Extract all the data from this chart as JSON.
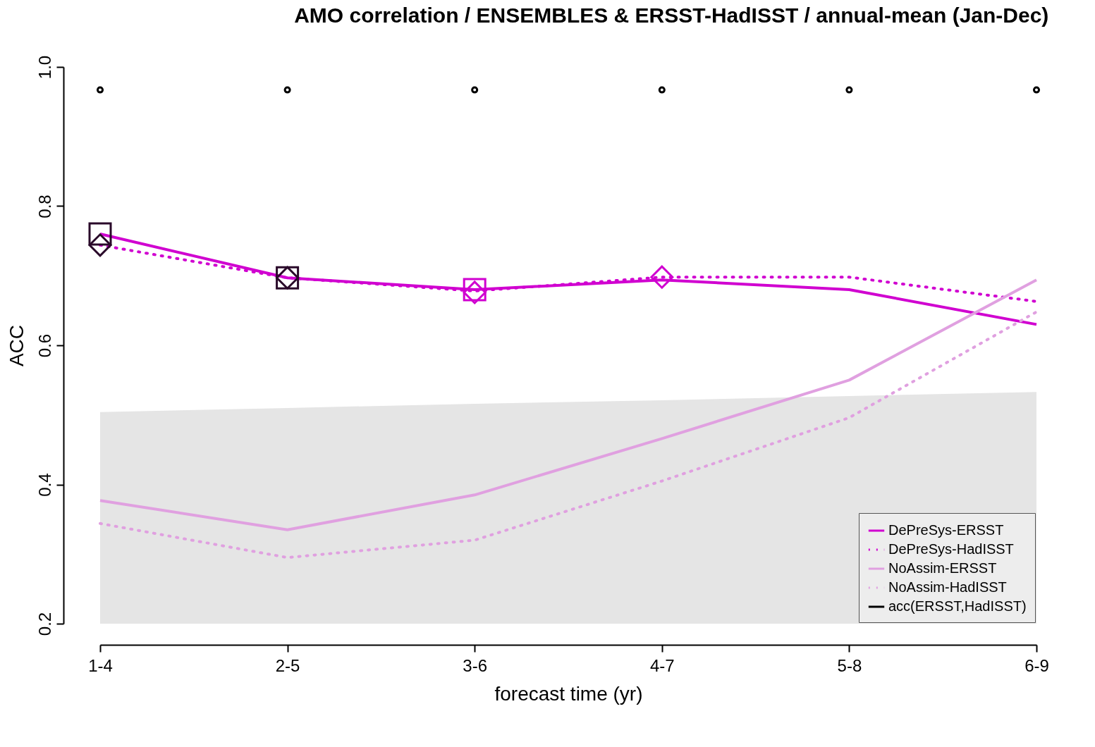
{
  "chart_data": {
    "type": "line",
    "title": "AMO correlation / ENSEMBLES & ERSST-HadISST / annual-mean (Jan-Dec)",
    "xlabel": "forecast time (yr)",
    "ylabel": "ACC",
    "categories": [
      "1-4",
      "2-5",
      "3-6",
      "4-7",
      "5-8",
      "6-9"
    ],
    "ylim": [
      0.2,
      1.0
    ],
    "yticks": [
      0.2,
      0.4,
      0.6,
      0.8,
      {
        "value": 1.0,
        "label": "1.0"
      }
    ],
    "grid": false,
    "legend": "bottom right",
    "series": [
      {
        "type": "area",
        "color": "#e5e5e5",
        "values": [
          0.504,
          0.51,
          0.516,
          0.521,
          0.527,
          0.533
        ]
      },
      {
        "name": "DePreSys-ERSST",
        "color": "#d000d0",
        "line_style": "solid",
        "values": [
          0.76,
          0.697,
          0.68,
          0.694,
          0.68,
          0.63
        ]
      },
      {
        "name": "DePreSys-HadISST",
        "color": "#d000d0",
        "line_style": "dotted",
        "values": [
          0.744,
          0.697,
          0.678,
          0.698,
          0.698,
          0.663
        ]
      },
      {
        "name": "NoAssim-ERSST",
        "color": "#e0a0e0",
        "line_style": "solid",
        "values": [
          0.377,
          0.335,
          0.385,
          0.466,
          0.55,
          0.694
        ]
      },
      {
        "name": "NoAssim-HadISST",
        "color": "#e0a0e0",
        "line_style": "dotted",
        "values": [
          0.344,
          0.295,
          0.32,
          0.405,
          0.496,
          0.648
        ]
      },
      {
        "type": "scatter",
        "marker": "square",
        "x": [
          "1-4",
          "2-5",
          "3-6"
        ],
        "colors": [
          "#2a0a2a",
          "#2a0a2a",
          "#d000d0"
        ],
        "values": [
          0.76,
          0.697,
          0.68
        ]
      },
      {
        "type": "scatter",
        "marker": "diamond",
        "x": [
          "1-4",
          "2-5",
          "3-6",
          "4-7"
        ],
        "colors": [
          "#2a0a2a",
          "#2a0a2a",
          "#d000d0",
          "#d000d0"
        ],
        "values": [
          0.744,
          0.697,
          0.676,
          0.698
        ]
      },
      {
        "type": "scatter",
        "marker": "circle",
        "name": "acc(ERSST,HadISST)",
        "color": "#000000",
        "values": [
          0.967,
          0.967,
          0.967,
          0.967,
          0.967,
          0.967
        ]
      }
    ]
  }
}
